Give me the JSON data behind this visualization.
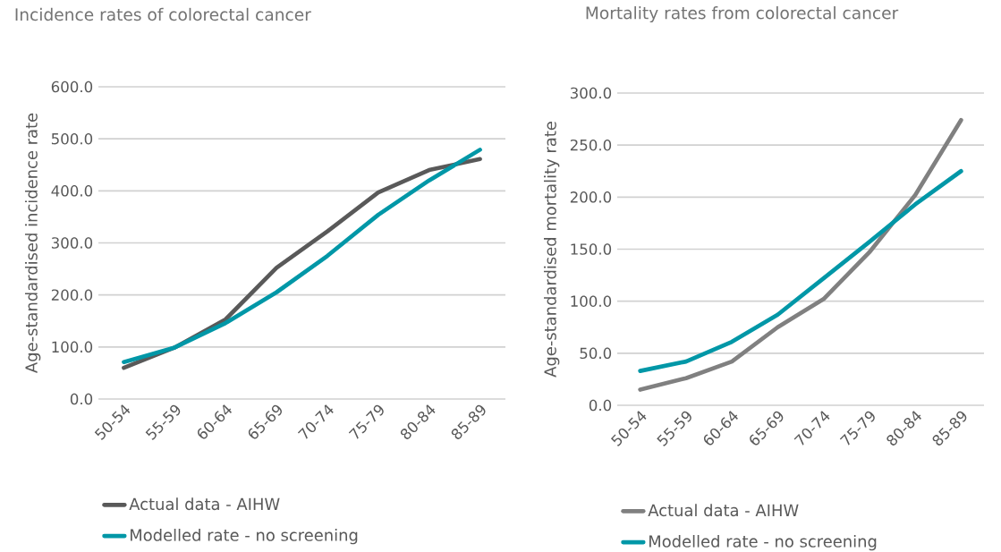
{
  "chart_data": [
    {
      "type": "line",
      "title": "Incidence rates of colorectal cancer",
      "ylabel": "Age-standardised incidence rate",
      "categories": [
        "50-54",
        "55-59",
        "60-64",
        "65-69",
        "70-74",
        "75-79",
        "80-84",
        "85-89"
      ],
      "series": [
        {
          "name": "Actual data - AIHW",
          "color": "#595959",
          "values": [
            60,
            99,
            153,
            252,
            322,
            397,
            440,
            461
          ]
        },
        {
          "name": "Modelled rate - no screening",
          "color": "#0097a7",
          "values": [
            71,
            99,
            146,
            205,
            275,
            354,
            420,
            479
          ]
        }
      ],
      "ylim": [
        0,
        600
      ],
      "yticks": [
        {
          "value": 0,
          "label": "0.0"
        },
        {
          "value": 100,
          "label": "100.0"
        },
        {
          "value": 200,
          "label": "200.0"
        },
        {
          "value": 300,
          "label": "300.0"
        },
        {
          "value": 400,
          "label": "400.0"
        },
        {
          "value": 500,
          "label": "500.0"
        },
        {
          "value": 600,
          "label": "600.0"
        }
      ],
      "grid": "y",
      "legend": "bottom"
    },
    {
      "type": "line",
      "title": "Mortality rates from colorectal cancer",
      "ylabel": "Age-standardised mortality rate",
      "categories": [
        "50-54",
        "55-59",
        "60-64",
        "65-69",
        "70-74",
        "75-79",
        "80-84",
        "85-89"
      ],
      "series": [
        {
          "name": "Actual data - AIHW",
          "color": "#808080",
          "values": [
            15,
            26,
            42,
            75,
            102,
            147,
            202,
            274
          ]
        },
        {
          "name": "Modelled rate - no screening",
          "color": "#0097a7",
          "values": [
            33,
            42,
            61,
            87,
            122,
            157,
            193,
            225
          ]
        }
      ],
      "ylim": [
        0,
        300
      ],
      "yticks": [
        {
          "value": 0,
          "label": "0.0"
        },
        {
          "value": 50,
          "label": "50.0"
        },
        {
          "value": 100,
          "label": "100.0"
        },
        {
          "value": 150,
          "label": "150.0"
        },
        {
          "value": 200,
          "label": "200.0"
        },
        {
          "value": 250,
          "label": "250.0"
        },
        {
          "value": 300,
          "label": "300.0"
        }
      ],
      "grid": "y",
      "legend": "bottom"
    }
  ]
}
